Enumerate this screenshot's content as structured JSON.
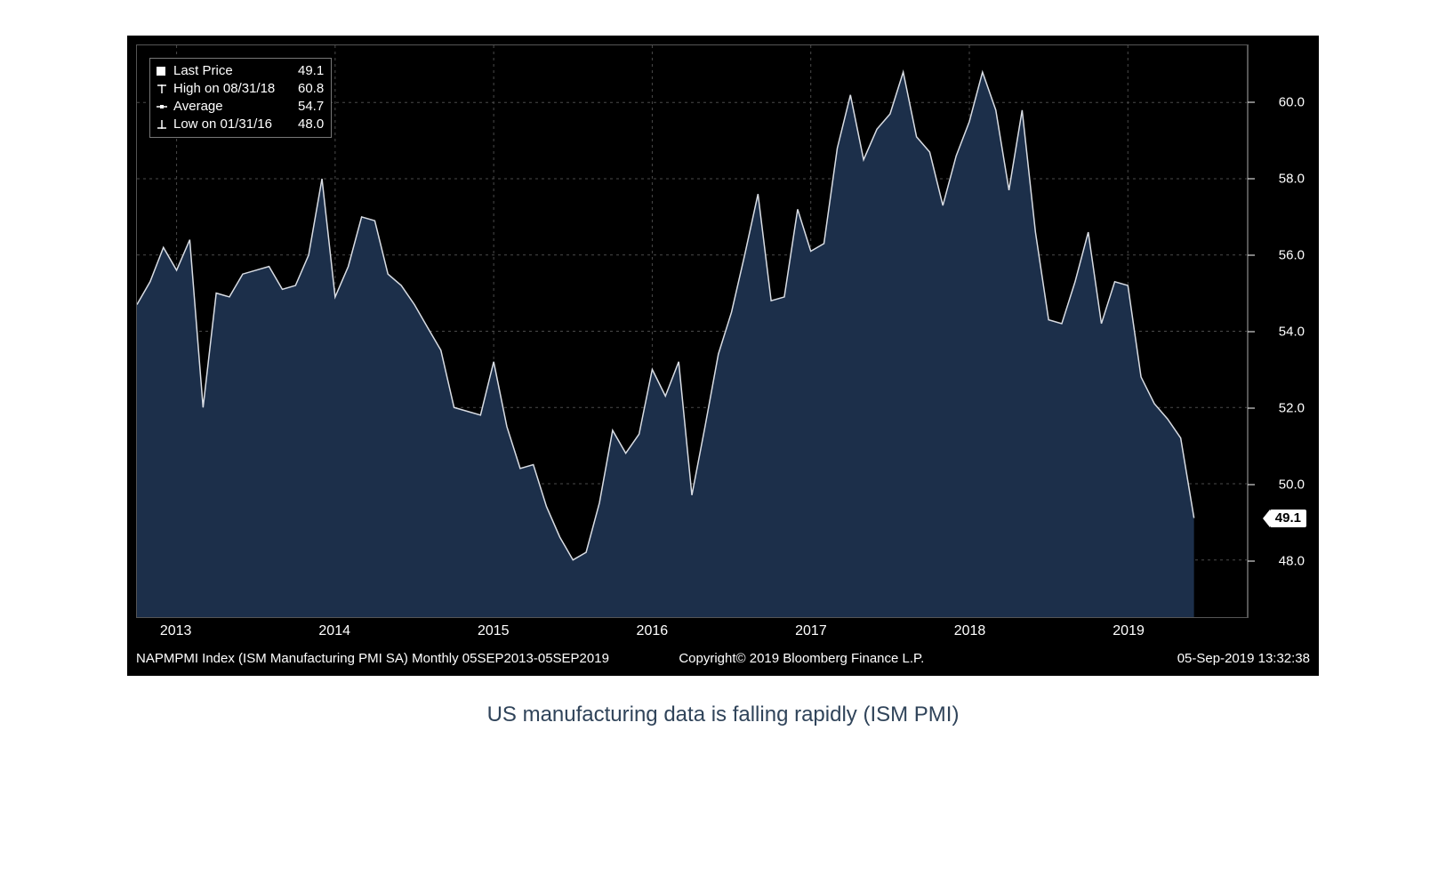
{
  "caption": "US manufacturing data is falling rapidly (ISM PMI)",
  "footer": {
    "left": "NAPMPMI Index (ISM Manufacturing PMI SA)   Monthly 05SEP2013-05SEP2019",
    "center": "Copyright© 2019 Bloomberg Finance L.P.",
    "right": "05-Sep-2019 13:32:38"
  },
  "chart": {
    "type": "area",
    "background_color": "#000000",
    "line_color": "#d9dde4",
    "line_width": 1.5,
    "fill_color": "#1c2f4a",
    "fill_opacity": 1.0,
    "grid_color": "#4a4a4a",
    "grid_dash": "3 4",
    "border_color": "#555555",
    "font_color": "#ffffff",
    "label_fontsize": 15,
    "ylim": [
      46.5,
      61.5
    ],
    "yticks": [
      48.0,
      50.0,
      52.0,
      54.0,
      56.0,
      58.0,
      60.0
    ],
    "xlim": [
      2012.75,
      2019.75
    ],
    "xticks": [
      {
        "pos": 2013.0,
        "label": "2013"
      },
      {
        "pos": 2014.0,
        "label": "2014"
      },
      {
        "pos": 2015.0,
        "label": "2015"
      },
      {
        "pos": 2016.0,
        "label": "2016"
      },
      {
        "pos": 2017.0,
        "label": "2017"
      },
      {
        "pos": 2018.0,
        "label": "2018"
      },
      {
        "pos": 2019.0,
        "label": "2019"
      }
    ],
    "last_value": 49.1,
    "last_flag_bg": "#ffffff",
    "last_flag_fg": "#000000",
    "series": [
      {
        "x": 2012.75,
        "y": 54.7
      },
      {
        "x": 2012.833,
        "y": 55.3
      },
      {
        "x": 2012.917,
        "y": 56.2
      },
      {
        "x": 2013.0,
        "y": 55.6
      },
      {
        "x": 2013.083,
        "y": 56.4
      },
      {
        "x": 2013.167,
        "y": 52.0
      },
      {
        "x": 2013.25,
        "y": 55.0
      },
      {
        "x": 2013.333,
        "y": 54.9
      },
      {
        "x": 2013.417,
        "y": 55.5
      },
      {
        "x": 2013.5,
        "y": 55.6
      },
      {
        "x": 2013.583,
        "y": 55.7
      },
      {
        "x": 2013.667,
        "y": 55.1
      },
      {
        "x": 2013.75,
        "y": 55.2
      },
      {
        "x": 2013.833,
        "y": 56.0
      },
      {
        "x": 2013.917,
        "y": 58.0
      },
      {
        "x": 2014.0,
        "y": 54.9
      },
      {
        "x": 2014.083,
        "y": 55.7
      },
      {
        "x": 2014.167,
        "y": 57.0
      },
      {
        "x": 2014.25,
        "y": 56.9
      },
      {
        "x": 2014.333,
        "y": 55.5
      },
      {
        "x": 2014.417,
        "y": 55.2
      },
      {
        "x": 2014.5,
        "y": 54.7
      },
      {
        "x": 2014.583,
        "y": 54.1
      },
      {
        "x": 2014.667,
        "y": 53.5
      },
      {
        "x": 2014.75,
        "y": 52.0
      },
      {
        "x": 2014.833,
        "y": 51.9
      },
      {
        "x": 2014.917,
        "y": 51.8
      },
      {
        "x": 2015.0,
        "y": 53.2
      },
      {
        "x": 2015.083,
        "y": 51.5
      },
      {
        "x": 2015.167,
        "y": 50.4
      },
      {
        "x": 2015.25,
        "y": 50.5
      },
      {
        "x": 2015.333,
        "y": 49.4
      },
      {
        "x": 2015.417,
        "y": 48.6
      },
      {
        "x": 2015.5,
        "y": 48.0
      },
      {
        "x": 2015.583,
        "y": 48.2
      },
      {
        "x": 2015.667,
        "y": 49.5
      },
      {
        "x": 2015.75,
        "y": 51.4
      },
      {
        "x": 2015.833,
        "y": 50.8
      },
      {
        "x": 2015.917,
        "y": 51.3
      },
      {
        "x": 2016.0,
        "y": 53.0
      },
      {
        "x": 2016.083,
        "y": 52.3
      },
      {
        "x": 2016.167,
        "y": 53.2
      },
      {
        "x": 2016.25,
        "y": 49.7
      },
      {
        "x": 2016.333,
        "y": 51.5
      },
      {
        "x": 2016.417,
        "y": 53.4
      },
      {
        "x": 2016.5,
        "y": 54.5
      },
      {
        "x": 2016.583,
        "y": 56.0
      },
      {
        "x": 2016.667,
        "y": 57.6
      },
      {
        "x": 2016.75,
        "y": 54.8
      },
      {
        "x": 2016.833,
        "y": 54.9
      },
      {
        "x": 2016.917,
        "y": 57.2
      },
      {
        "x": 2017.0,
        "y": 56.1
      },
      {
        "x": 2017.083,
        "y": 56.3
      },
      {
        "x": 2017.167,
        "y": 58.8
      },
      {
        "x": 2017.25,
        "y": 60.2
      },
      {
        "x": 2017.333,
        "y": 58.5
      },
      {
        "x": 2017.417,
        "y": 59.3
      },
      {
        "x": 2017.5,
        "y": 59.7
      },
      {
        "x": 2017.583,
        "y": 60.8
      },
      {
        "x": 2017.667,
        "y": 59.1
      },
      {
        "x": 2017.75,
        "y": 58.7
      },
      {
        "x": 2017.833,
        "y": 57.3
      },
      {
        "x": 2017.917,
        "y": 58.6
      },
      {
        "x": 2018.0,
        "y": 59.5
      },
      {
        "x": 2018.083,
        "y": 60.8
      },
      {
        "x": 2018.167,
        "y": 59.8
      },
      {
        "x": 2018.25,
        "y": 57.7
      },
      {
        "x": 2018.333,
        "y": 59.8
      },
      {
        "x": 2018.417,
        "y": 56.6
      },
      {
        "x": 2018.5,
        "y": 54.3
      },
      {
        "x": 2018.583,
        "y": 54.2
      },
      {
        "x": 2018.667,
        "y": 55.3
      },
      {
        "x": 2018.75,
        "y": 56.6
      },
      {
        "x": 2018.833,
        "y": 54.2
      },
      {
        "x": 2018.917,
        "y": 55.3
      },
      {
        "x": 2019.0,
        "y": 55.2
      },
      {
        "x": 2019.083,
        "y": 52.8
      },
      {
        "x": 2019.167,
        "y": 52.1
      },
      {
        "x": 2019.25,
        "y": 51.7
      },
      {
        "x": 2019.333,
        "y": 51.2
      },
      {
        "x": 2019.417,
        "y": 49.1
      }
    ],
    "legend": {
      "border_color": "#777777",
      "rows": [
        {
          "icon": "square-white",
          "label": "Last Price",
          "value": "49.1"
        },
        {
          "icon": "tick-up",
          "label": "High on 08/31/18",
          "value": "60.8"
        },
        {
          "icon": "dash",
          "label": "Average",
          "value": "54.7"
        },
        {
          "icon": "tick-down",
          "label": "Low on 01/31/16",
          "value": "48.0"
        }
      ]
    }
  }
}
